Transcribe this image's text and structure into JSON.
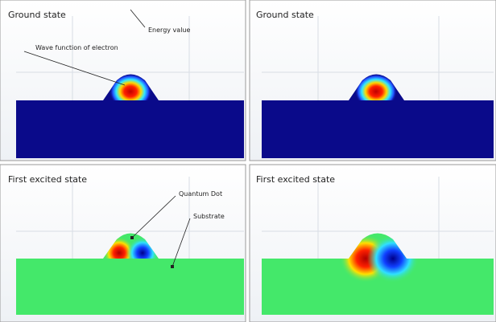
{
  "panels": [
    {
      "title": "Ground state"
    },
    {
      "title": "Ground state"
    },
    {
      "title": "First excited state"
    },
    {
      "title": "First excited state"
    }
  ],
  "annotations": {
    "energy": "Energy value",
    "wave": "Wave function of electron",
    "dot": "Quantum Dot",
    "substrate": "Substrate"
  }
}
